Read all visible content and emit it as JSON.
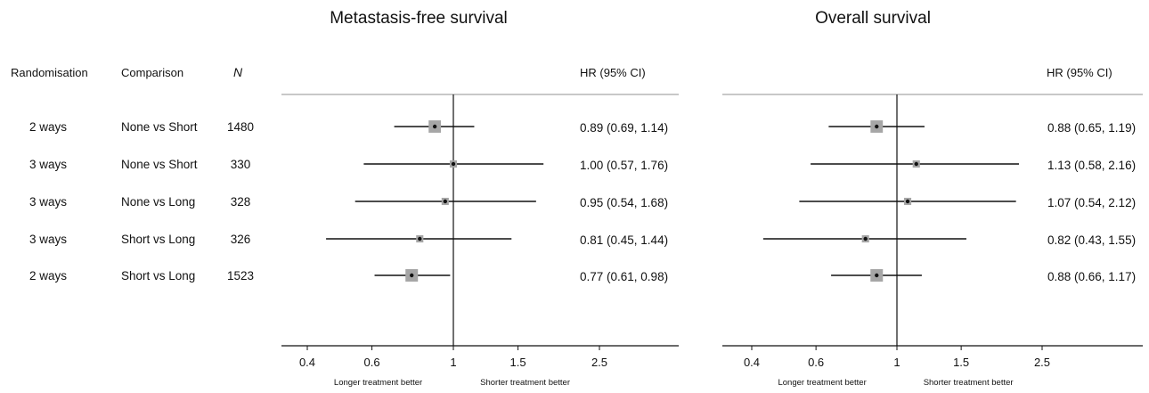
{
  "headers": {
    "randomisation": "Randomisation",
    "comparison": "Comparison",
    "n": "N"
  },
  "rows": [
    {
      "randomisation": "2 ways",
      "comparison": "None vs Short",
      "n": "1480"
    },
    {
      "randomisation": "3 ways",
      "comparison": "None vs Short",
      "n": "330"
    },
    {
      "randomisation": "3 ways",
      "comparison": "None vs Long",
      "n": "328"
    },
    {
      "randomisation": "3 ways",
      "comparison": "Short vs Long",
      "n": "326"
    },
    {
      "randomisation": "2 ways",
      "comparison": "Short vs Long",
      "n": "1523"
    }
  ],
  "colors": {
    "axis": "#111111",
    "separator": "#a6a6a6",
    "ci_line": "#111111",
    "marker_box": "#a6a6a6",
    "point": "#111111"
  },
  "chart_data": [
    {
      "type": "scatter",
      "title": "Metastasis-free survival",
      "column_header": "HR (95% CI)",
      "x_scale": "log",
      "xlim": [
        0.35,
        3.5
      ],
      "x_ticks": [
        0.4,
        0.6,
        1,
        1.5,
        2.5
      ],
      "x_tick_labels": [
        "0.4",
        "0.6",
        "1",
        "1.5",
        "2.5"
      ],
      "reference_line": 1,
      "left_note": "Longer treatment better",
      "right_note": "Shorter treatment better",
      "points": [
        {
          "hr": 0.89,
          "lo": 0.69,
          "hi": 1.14,
          "label": "0.89 (0.69, 1.14)",
          "weight": 1480
        },
        {
          "hr": 1.0,
          "lo": 0.57,
          "hi": 1.76,
          "label": "1.00 (0.57, 1.76)",
          "weight": 330
        },
        {
          "hr": 0.95,
          "lo": 0.54,
          "hi": 1.68,
          "label": "0.95 (0.54, 1.68)",
          "weight": 328
        },
        {
          "hr": 0.81,
          "lo": 0.45,
          "hi": 1.44,
          "label": "0.81 (0.45, 1.44)",
          "weight": 326
        },
        {
          "hr": 0.77,
          "lo": 0.61,
          "hi": 0.98,
          "label": "0.77 (0.61, 0.98)",
          "weight": 1523
        }
      ]
    },
    {
      "type": "scatter",
      "title": "Overall survival",
      "column_header": "HR (95% CI)",
      "x_scale": "log",
      "xlim": [
        0.35,
        3.5
      ],
      "x_ticks": [
        0.4,
        0.6,
        1,
        1.5,
        2.5
      ],
      "x_tick_labels": [
        "0.4",
        "0.6",
        "1",
        "1.5",
        "2.5"
      ],
      "reference_line": 1,
      "left_note": "Longer treatment better",
      "right_note": "Shorter treatment better",
      "points": [
        {
          "hr": 0.88,
          "lo": 0.65,
          "hi": 1.19,
          "label": "0.88 (0.65, 1.19)",
          "weight": 1480
        },
        {
          "hr": 1.13,
          "lo": 0.58,
          "hi": 2.16,
          "label": "1.13 (0.58, 2.16)",
          "weight": 330
        },
        {
          "hr": 1.07,
          "lo": 0.54,
          "hi": 2.12,
          "label": "1.07 (0.54, 2.12)",
          "weight": 328
        },
        {
          "hr": 0.82,
          "lo": 0.43,
          "hi": 1.55,
          "label": "0.82 (0.43, 1.55)",
          "weight": 326
        },
        {
          "hr": 0.88,
          "lo": 0.66,
          "hi": 1.17,
          "label": "0.88 (0.66, 1.17)",
          "weight": 1523
        }
      ]
    }
  ]
}
